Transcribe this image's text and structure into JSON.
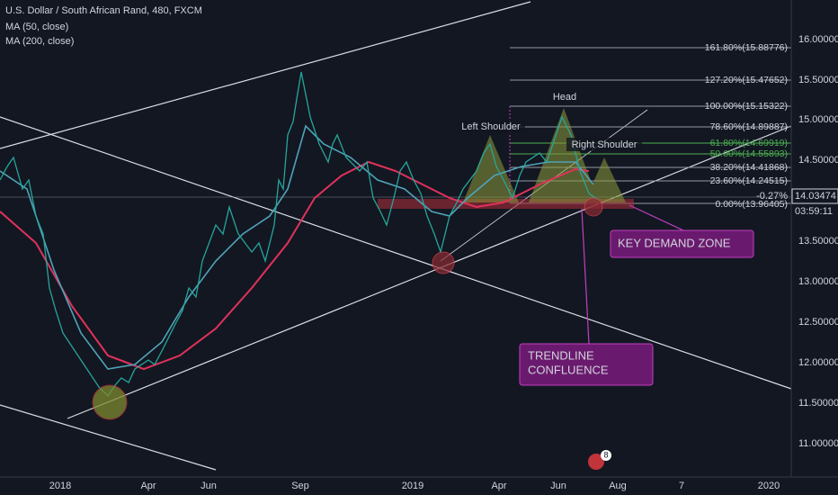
{
  "header": {
    "symbol": "U.S. Dollar / South African Rand, 480, FXCM",
    "indicators": [
      "MA (50, close)",
      "MA (200, close)"
    ]
  },
  "price_axis": [
    "16.00000",
    "15.50000",
    "15.00000",
    "14.50000",
    "13.50000",
    "13.00000",
    "12.50000",
    "12.00000",
    "11.50000",
    "11.00000"
  ],
  "time_axis": [
    "2018",
    "Apr",
    "Jun",
    "Sep",
    "2019",
    "Apr",
    "Jun",
    "Aug",
    "7",
    "2020"
  ],
  "fib_levels": [
    "161.80%(15.88776)",
    "127.20%(15.47652)",
    "100.00%(15.15322)",
    "78.60%(14.89887)",
    "61.80%(14.69919)",
    "50.00%(14.55893)",
    "38.20%(14.41868)",
    "23.60%(14.24515)",
    "0.00%(13.96405)"
  ],
  "current_price": {
    "change": "-0.27%",
    "price": "14.03474",
    "countdown": "03:59:11"
  },
  "annotations": {
    "head": "Head",
    "left_shoulder": "Left Shoulder",
    "right_shoulder": "Right Shoulder",
    "demand_zone": "KEY DEMAND ZONE",
    "confluence": [
      "TRENDLINE",
      "CONFLUENCE"
    ]
  },
  "badge": "8"
}
